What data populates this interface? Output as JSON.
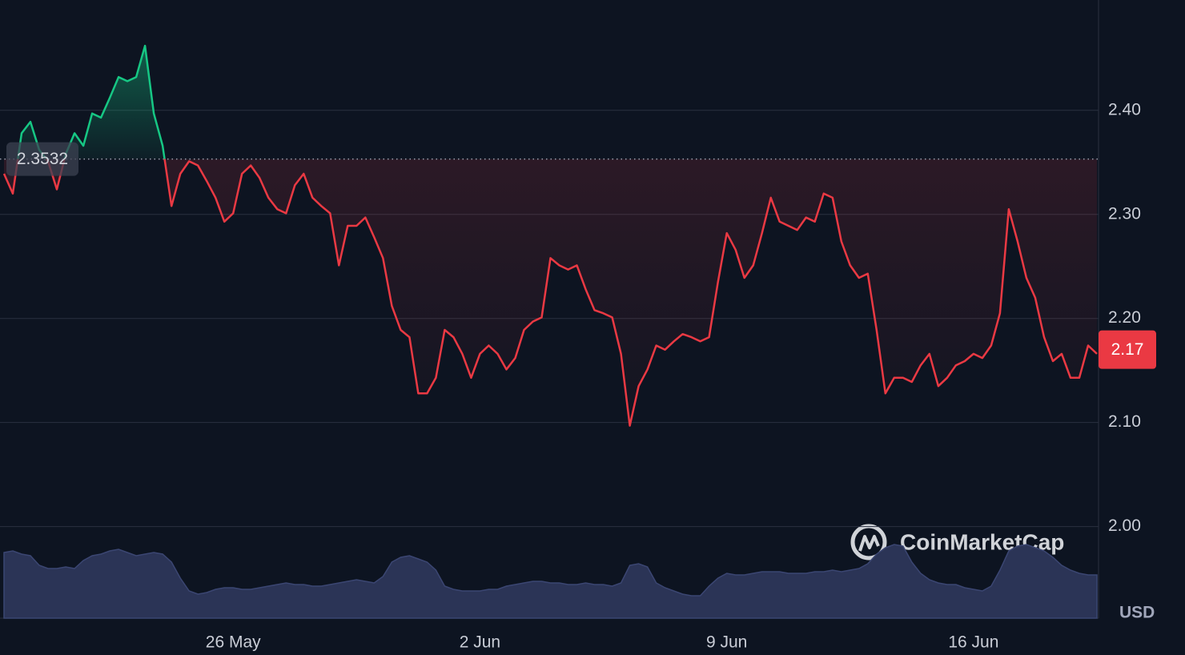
{
  "chart_data": {
    "type": "line",
    "categories": [
      null,
      null,
      null,
      null,
      null,
      null,
      null,
      null,
      null,
      null,
      null,
      null,
      null,
      null,
      null,
      null,
      null,
      null,
      null,
      null,
      null,
      null,
      null,
      null,
      null,
      null,
      "26 May",
      null,
      null,
      null,
      null,
      null,
      null,
      null,
      null,
      null,
      null,
      null,
      null,
      null,
      null,
      null,
      null,
      null,
      null,
      null,
      null,
      null,
      null,
      null,
      null,
      null,
      null,
      null,
      "2 Jun",
      null,
      null,
      null,
      null,
      null,
      null,
      null,
      null,
      null,
      null,
      null,
      null,
      null,
      null,
      null,
      null,
      null,
      null,
      null,
      null,
      null,
      null,
      null,
      null,
      null,
      null,
      null,
      "9 Jun",
      null,
      null,
      null,
      null,
      null,
      null,
      null,
      null,
      null,
      null,
      null,
      null,
      null,
      null,
      null,
      null,
      null,
      null,
      null,
      null,
      null,
      null,
      null,
      null,
      null,
      null,
      null,
      "16 Jun",
      null,
      null,
      null,
      null,
      null,
      null,
      null,
      null,
      null,
      null,
      null,
      null,
      null,
      null
    ],
    "values": [
      2.339,
      2.32,
      2.378,
      2.389,
      2.362,
      2.351,
      2.324,
      2.358,
      2.378,
      2.366,
      2.397,
      2.393,
      2.412,
      2.432,
      2.428,
      2.432,
      2.462,
      2.397,
      2.366,
      2.308,
      2.339,
      2.351,
      2.347,
      2.332,
      2.316,
      2.293,
      2.301,
      2.339,
      2.347,
      2.335,
      2.316,
      2.305,
      2.301,
      2.328,
      2.339,
      2.316,
      2.308,
      2.301,
      2.251,
      2.289,
      2.289,
      2.297,
      2.278,
      2.258,
      2.212,
      2.189,
      2.182,
      2.128,
      2.128,
      2.143,
      2.189,
      2.182,
      2.166,
      2.143,
      2.166,
      2.174,
      2.166,
      2.151,
      2.162,
      2.189,
      2.197,
      2.201,
      2.258,
      2.251,
      2.247,
      2.251,
      2.228,
      2.208,
      2.205,
      2.201,
      2.166,
      2.097,
      2.135,
      2.151,
      2.174,
      2.17,
      2.178,
      2.185,
      2.182,
      2.178,
      2.182,
      2.235,
      2.282,
      2.266,
      2.239,
      2.251,
      2.282,
      2.316,
      2.293,
      2.289,
      2.285,
      2.297,
      2.293,
      2.32,
      2.316,
      2.274,
      2.251,
      2.239,
      2.243,
      2.189,
      2.128,
      2.143,
      2.143,
      2.139,
      2.155,
      2.166,
      2.135,
      2.143,
      2.155,
      2.159,
      2.166,
      2.162,
      2.174,
      2.205,
      2.305,
      2.274,
      2.239,
      2.22,
      2.182,
      2.159,
      2.166,
      2.143,
      2.143,
      2.174,
      2.166
    ],
    "volume": [
      82,
      84,
      80,
      78,
      66,
      62,
      62,
      64,
      62,
      72,
      78,
      80,
      84,
      86,
      82,
      78,
      80,
      82,
      80,
      70,
      50,
      34,
      30,
      32,
      36,
      38,
      38,
      36,
      36,
      38,
      40,
      42,
      44,
      42,
      42,
      40,
      40,
      42,
      44,
      46,
      48,
      46,
      44,
      52,
      70,
      76,
      78,
      74,
      70,
      60,
      40,
      36,
      34,
      34,
      34,
      36,
      36,
      40,
      42,
      44,
      46,
      46,
      44,
      44,
      42,
      42,
      44,
      42,
      42,
      40,
      44,
      66,
      68,
      64,
      44,
      38,
      34,
      30,
      28,
      28,
      40,
      50,
      56,
      54,
      54,
      56,
      58,
      58,
      58,
      56,
      56,
      56,
      58,
      58,
      60,
      58,
      60,
      62,
      68,
      80,
      88,
      92,
      90,
      70,
      56,
      48,
      44,
      42,
      42,
      38,
      36,
      34,
      40,
      60,
      84,
      90,
      92,
      88,
      84,
      76,
      66,
      60,
      56,
      54,
      54
    ],
    "up_color": "#16c784",
    "down_color": "#ea3943",
    "volume_color": "#2b3456",
    "baseline": 2.3532,
    "last_price": 2.17,
    "currency": "USD",
    "watermark": "CoinMarketCap",
    "ylim": [
      1.912,
      2.506
    ],
    "yticks": [
      {
        "value": 2.0,
        "label": "2.00"
      },
      {
        "value": 2.1,
        "label": "2.10"
      },
      {
        "value": 2.2,
        "label": "2.20"
      },
      {
        "value": 2.3,
        "label": "2.30"
      },
      {
        "value": 2.4,
        "label": "2.40"
      }
    ],
    "grid": true
  }
}
